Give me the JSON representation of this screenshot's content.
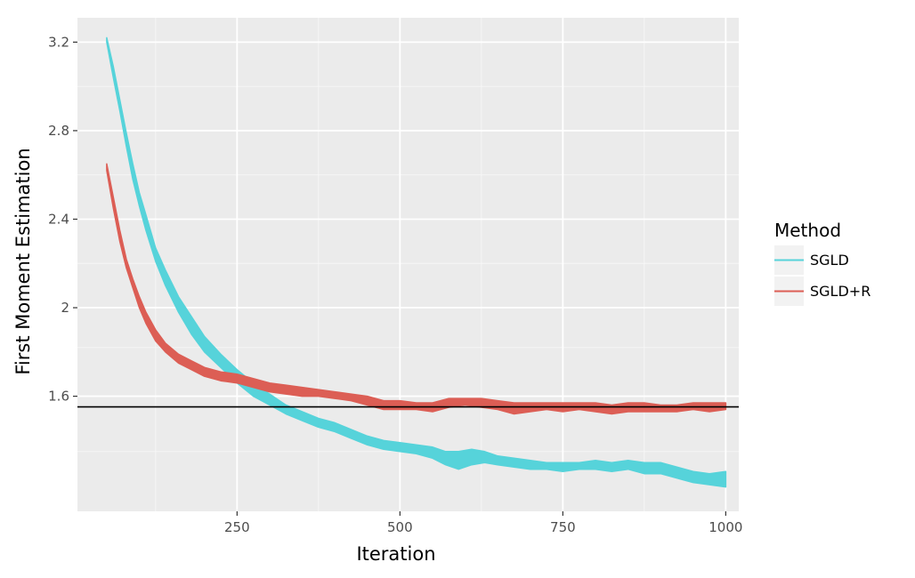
{
  "chart_data": {
    "type": "line",
    "xlabel": "Iteration",
    "ylabel": "First Moment Estimation",
    "xlim": [
      5,
      1020
    ],
    "ylim": [
      1.08,
      3.31
    ],
    "x_ticks": [
      250,
      500,
      750,
      1000
    ],
    "x_minor_ticks": [
      125,
      375,
      625,
      875
    ],
    "x_tick_labels": [
      "250",
      "500",
      "750",
      "1000"
    ],
    "y_ticks": [
      1.6,
      2,
      2.4,
      2.8,
      3.2
    ],
    "y_tick_labels": [
      "1.6",
      "2",
      "2.4",
      "2.8",
      "3.2"
    ],
    "y_minor_ticks": [
      1.35,
      1.82,
      2.2,
      2.6,
      3.0
    ],
    "hline": 1.552,
    "background": "#ebebeb",
    "grid": true,
    "legend": {
      "title": "Method",
      "position": "right",
      "entries": [
        "SGLD",
        "SGLD+R"
      ]
    },
    "series": [
      {
        "name": "SGLD",
        "color": "#56d3da",
        "x": [
          50,
          60,
          70,
          80,
          90,
          100,
          110,
          125,
          140,
          160,
          180,
          200,
          225,
          250,
          275,
          300,
          325,
          350,
          375,
          400,
          425,
          450,
          475,
          500,
          525,
          550,
          570,
          590,
          610,
          630,
          650,
          675,
          700,
          725,
          750,
          775,
          800,
          825,
          850,
          875,
          900,
          925,
          950,
          975,
          1000
        ],
        "lower": [
          3.2,
          3.04,
          2.89,
          2.73,
          2.58,
          2.46,
          2.35,
          2.21,
          2.1,
          1.98,
          1.88,
          1.8,
          1.73,
          1.66,
          1.6,
          1.56,
          1.52,
          1.49,
          1.46,
          1.44,
          1.41,
          1.38,
          1.36,
          1.35,
          1.34,
          1.32,
          1.29,
          1.27,
          1.29,
          1.3,
          1.29,
          1.28,
          1.27,
          1.27,
          1.26,
          1.27,
          1.27,
          1.26,
          1.27,
          1.25,
          1.25,
          1.23,
          1.21,
          1.2,
          1.19
        ],
        "upper": [
          3.22,
          3.09,
          2.94,
          2.79,
          2.65,
          2.52,
          2.42,
          2.27,
          2.17,
          2.05,
          1.96,
          1.87,
          1.79,
          1.72,
          1.66,
          1.61,
          1.56,
          1.53,
          1.5,
          1.48,
          1.45,
          1.42,
          1.4,
          1.39,
          1.38,
          1.37,
          1.35,
          1.35,
          1.36,
          1.35,
          1.33,
          1.32,
          1.31,
          1.3,
          1.3,
          1.3,
          1.31,
          1.3,
          1.31,
          1.3,
          1.3,
          1.28,
          1.26,
          1.25,
          1.26
        ]
      },
      {
        "name": "SGLD+R",
        "color": "#dc5e55",
        "x": [
          50,
          60,
          70,
          80,
          90,
          100,
          110,
          125,
          140,
          160,
          180,
          200,
          225,
          250,
          275,
          300,
          325,
          350,
          375,
          400,
          425,
          450,
          475,
          500,
          525,
          550,
          575,
          600,
          625,
          650,
          675,
          700,
          725,
          750,
          775,
          800,
          825,
          850,
          875,
          900,
          925,
          950,
          975,
          1000
        ],
        "lower": [
          2.62,
          2.45,
          2.3,
          2.18,
          2.09,
          2.0,
          1.93,
          1.85,
          1.8,
          1.75,
          1.72,
          1.69,
          1.67,
          1.66,
          1.64,
          1.62,
          1.61,
          1.6,
          1.6,
          1.59,
          1.58,
          1.56,
          1.54,
          1.54,
          1.54,
          1.53,
          1.55,
          1.56,
          1.55,
          1.54,
          1.52,
          1.53,
          1.54,
          1.53,
          1.54,
          1.53,
          1.52,
          1.53,
          1.53,
          1.53,
          1.53,
          1.54,
          1.53,
          1.54
        ],
        "upper": [
          2.65,
          2.5,
          2.35,
          2.22,
          2.13,
          2.05,
          1.98,
          1.9,
          1.84,
          1.79,
          1.76,
          1.73,
          1.71,
          1.7,
          1.68,
          1.66,
          1.65,
          1.64,
          1.63,
          1.62,
          1.61,
          1.6,
          1.58,
          1.58,
          1.57,
          1.57,
          1.59,
          1.59,
          1.59,
          1.58,
          1.57,
          1.57,
          1.57,
          1.57,
          1.57,
          1.57,
          1.56,
          1.57,
          1.57,
          1.56,
          1.56,
          1.57,
          1.57,
          1.57
        ]
      }
    ]
  }
}
